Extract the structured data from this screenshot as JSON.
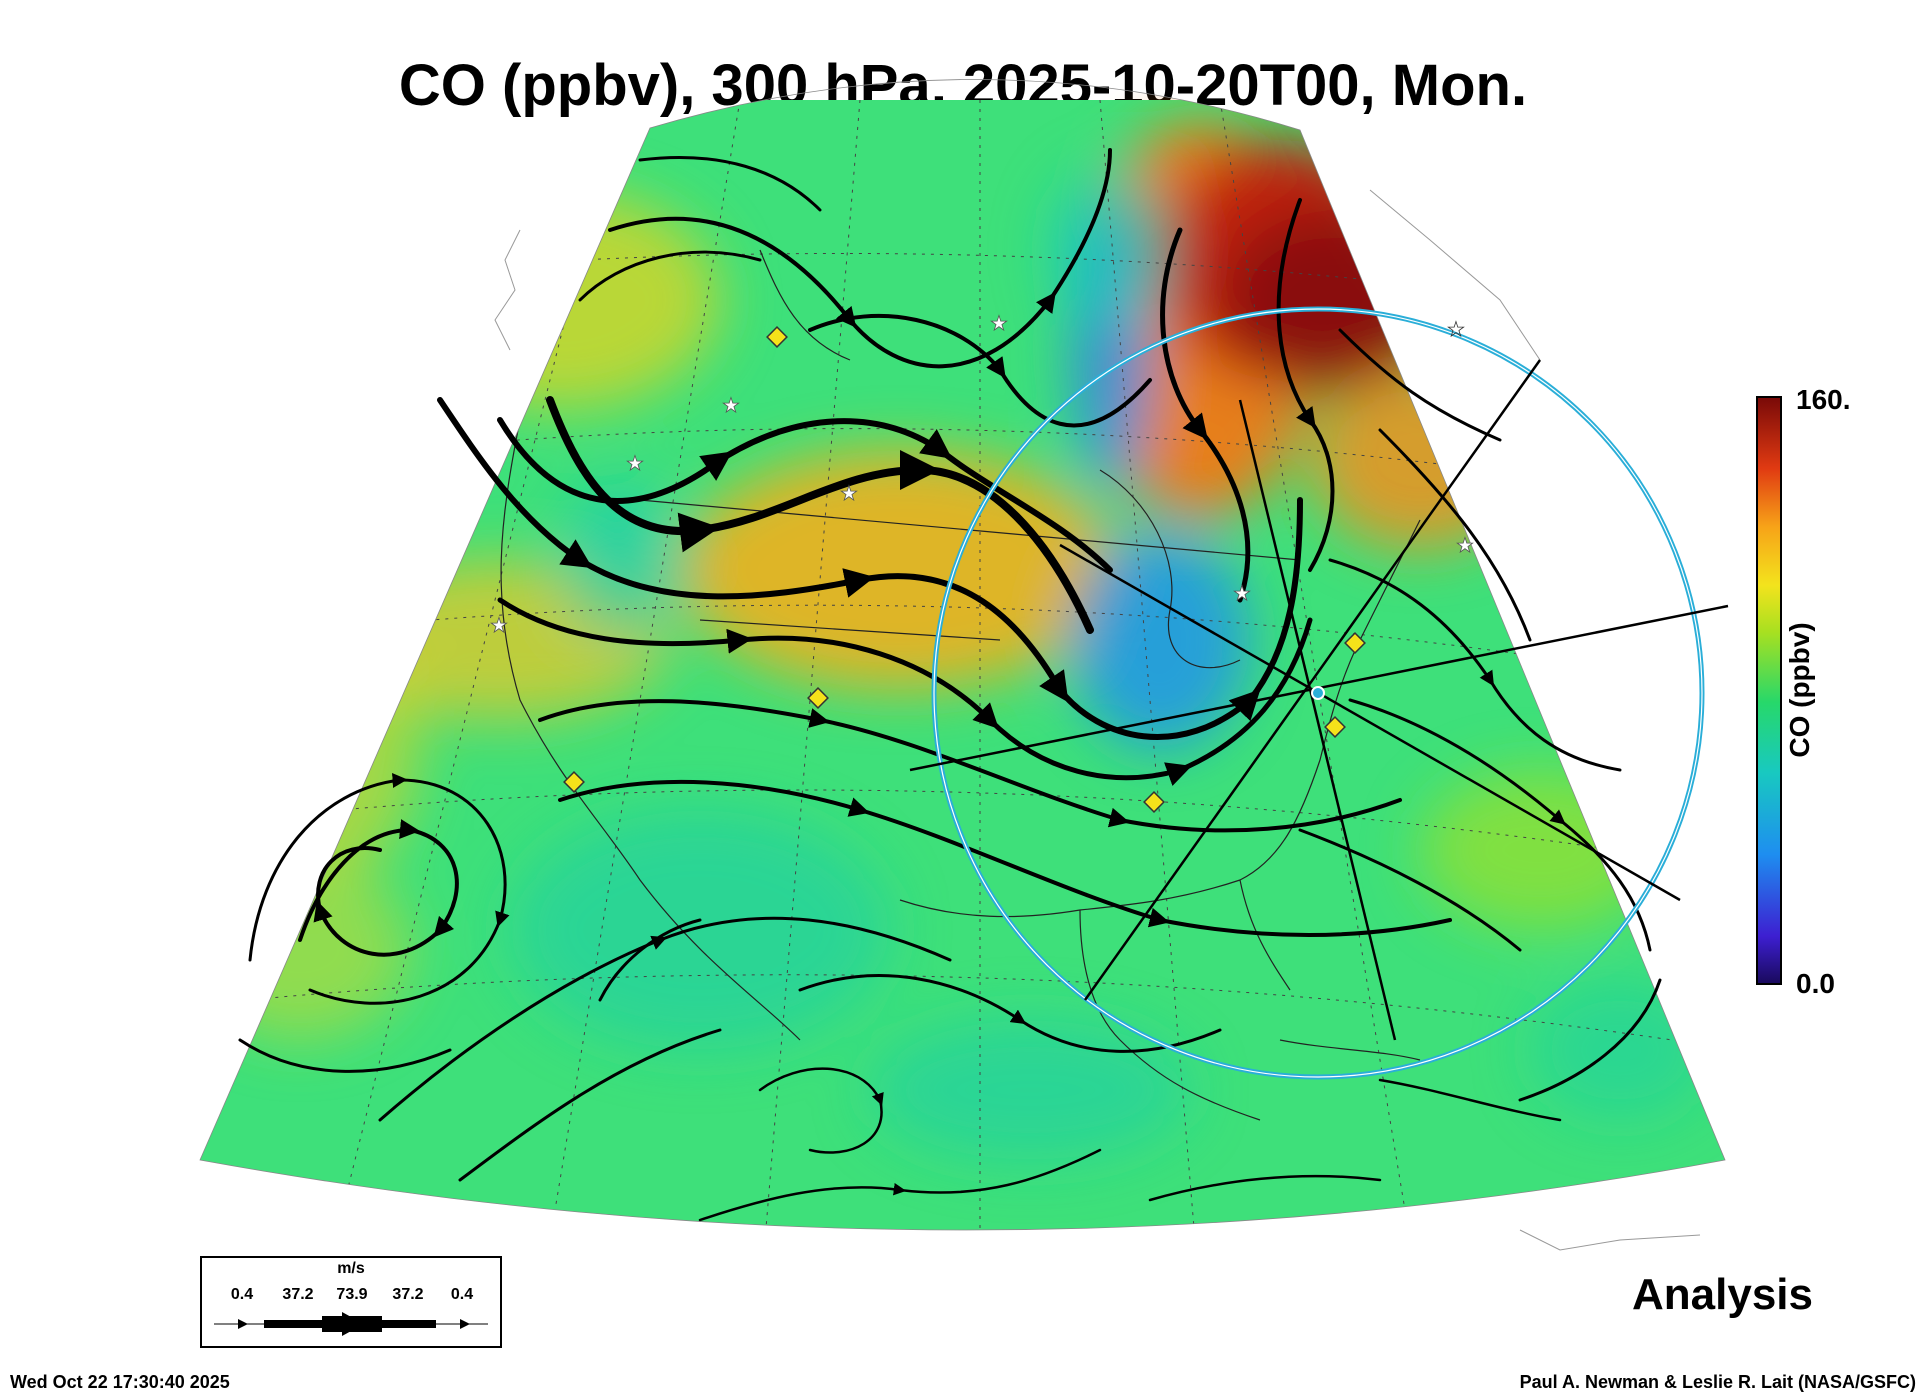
{
  "title": "CO (ppbv), 300 hPa, 2025-10-20T00, Mon.",
  "colorbar": {
    "max_label": "160.",
    "min_label": "0.0",
    "unit_label": "CO (ppbv)",
    "colors": [
      "#1a0a5e",
      "#3d1fd1",
      "#1e8ef0",
      "#18c9c0",
      "#27d86a",
      "#a8e020",
      "#f3e31d",
      "#f7a318",
      "#e03a12",
      "#7a0a08"
    ]
  },
  "wind_legend": {
    "unit": "m/s",
    "values": [
      "0.4",
      "37.2",
      "73.9",
      "37.2",
      "0.4"
    ]
  },
  "panel_label": "Analysis",
  "timestamp": "Wed Oct 22 17:30:40 2025",
  "credit": "Paul A. Newman & Leslie R. Lait (NASA/GSFC)",
  "colors": {
    "field_base": "#3ee07a",
    "high_co": "#7a0a08",
    "range_ring": "#2aaed8",
    "marker": "#f5e21a"
  }
}
